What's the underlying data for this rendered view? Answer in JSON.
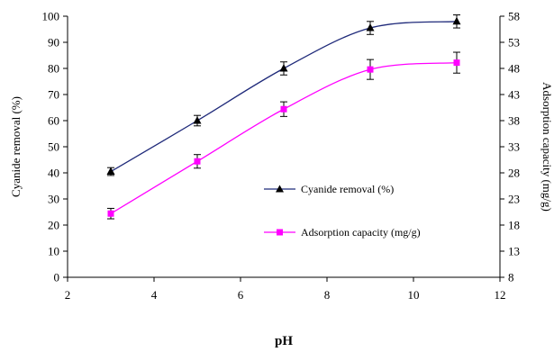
{
  "chart_data": {
    "type": "line",
    "xlabel": "pH",
    "ylabel": "Cyanide removal (%)",
    "y2label": "Adsorption capacity (mg/g)",
    "xlim": [
      2,
      12
    ],
    "ylim": [
      0,
      100
    ],
    "y2lim": [
      8,
      58
    ],
    "x_ticks": [
      "2",
      "4",
      "6",
      "8",
      "10",
      "12"
    ],
    "y_ticks": [
      "0",
      "10",
      "20",
      "30",
      "40",
      "50",
      "60",
      "70",
      "80",
      "90",
      "100"
    ],
    "y2_ticks": [
      "8",
      "13",
      "18",
      "23",
      "28",
      "33",
      "38",
      "43",
      "48",
      "53",
      "58"
    ],
    "grid": false,
    "legend_position": "center-right",
    "series": [
      {
        "name": "Cyanide removal (%)",
        "axis": "left",
        "marker": "triangle",
        "color": "#1f2a7a",
        "x": [
          3,
          5,
          7,
          9,
          11
        ],
        "y": [
          40.5,
          60,
          80,
          95.5,
          98
        ],
        "err": [
          1.5,
          2,
          2.5,
          2.5,
          2.5
        ]
      },
      {
        "name": "Adsorption capacity (mg/g)",
        "axis": "right",
        "marker": "square",
        "color": "#ff00ff",
        "x": [
          3,
          5,
          7,
          9,
          11
        ],
        "y": [
          20.2,
          30.2,
          40.2,
          47.8,
          49.1
        ],
        "err": [
          1,
          1.3,
          1.4,
          1.9,
          2
        ]
      }
    ]
  }
}
